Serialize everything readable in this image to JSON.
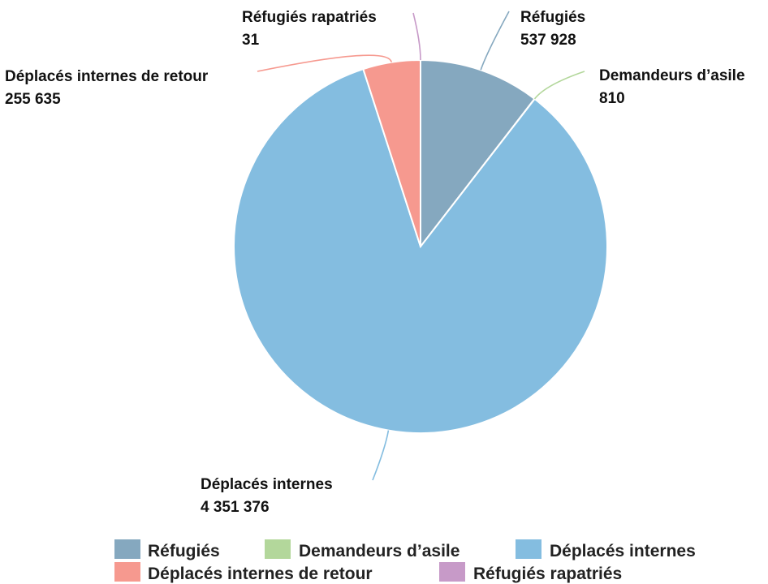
{
  "chart_data": {
    "type": "pie",
    "title": "",
    "legend_position": "bottom",
    "slices": [
      {
        "name": "Réfugiés",
        "value": 537928,
        "value_label": "537 928",
        "color": "#85a8bf"
      },
      {
        "name": "Demandeurs d’asile",
        "value": 810,
        "value_label": "810",
        "color": "#b3d79b"
      },
      {
        "name": "Déplacés internes",
        "value": 4351376,
        "value_label": "4 351 376",
        "color": "#84bde0"
      },
      {
        "name": "Déplacés internes de retour",
        "value": 255635,
        "value_label": "255 635",
        "color": "#f6998f"
      },
      {
        "name": "Réfugiés rapatriés",
        "value": 31,
        "value_label": "31",
        "color": "#c79ac8"
      }
    ]
  }
}
